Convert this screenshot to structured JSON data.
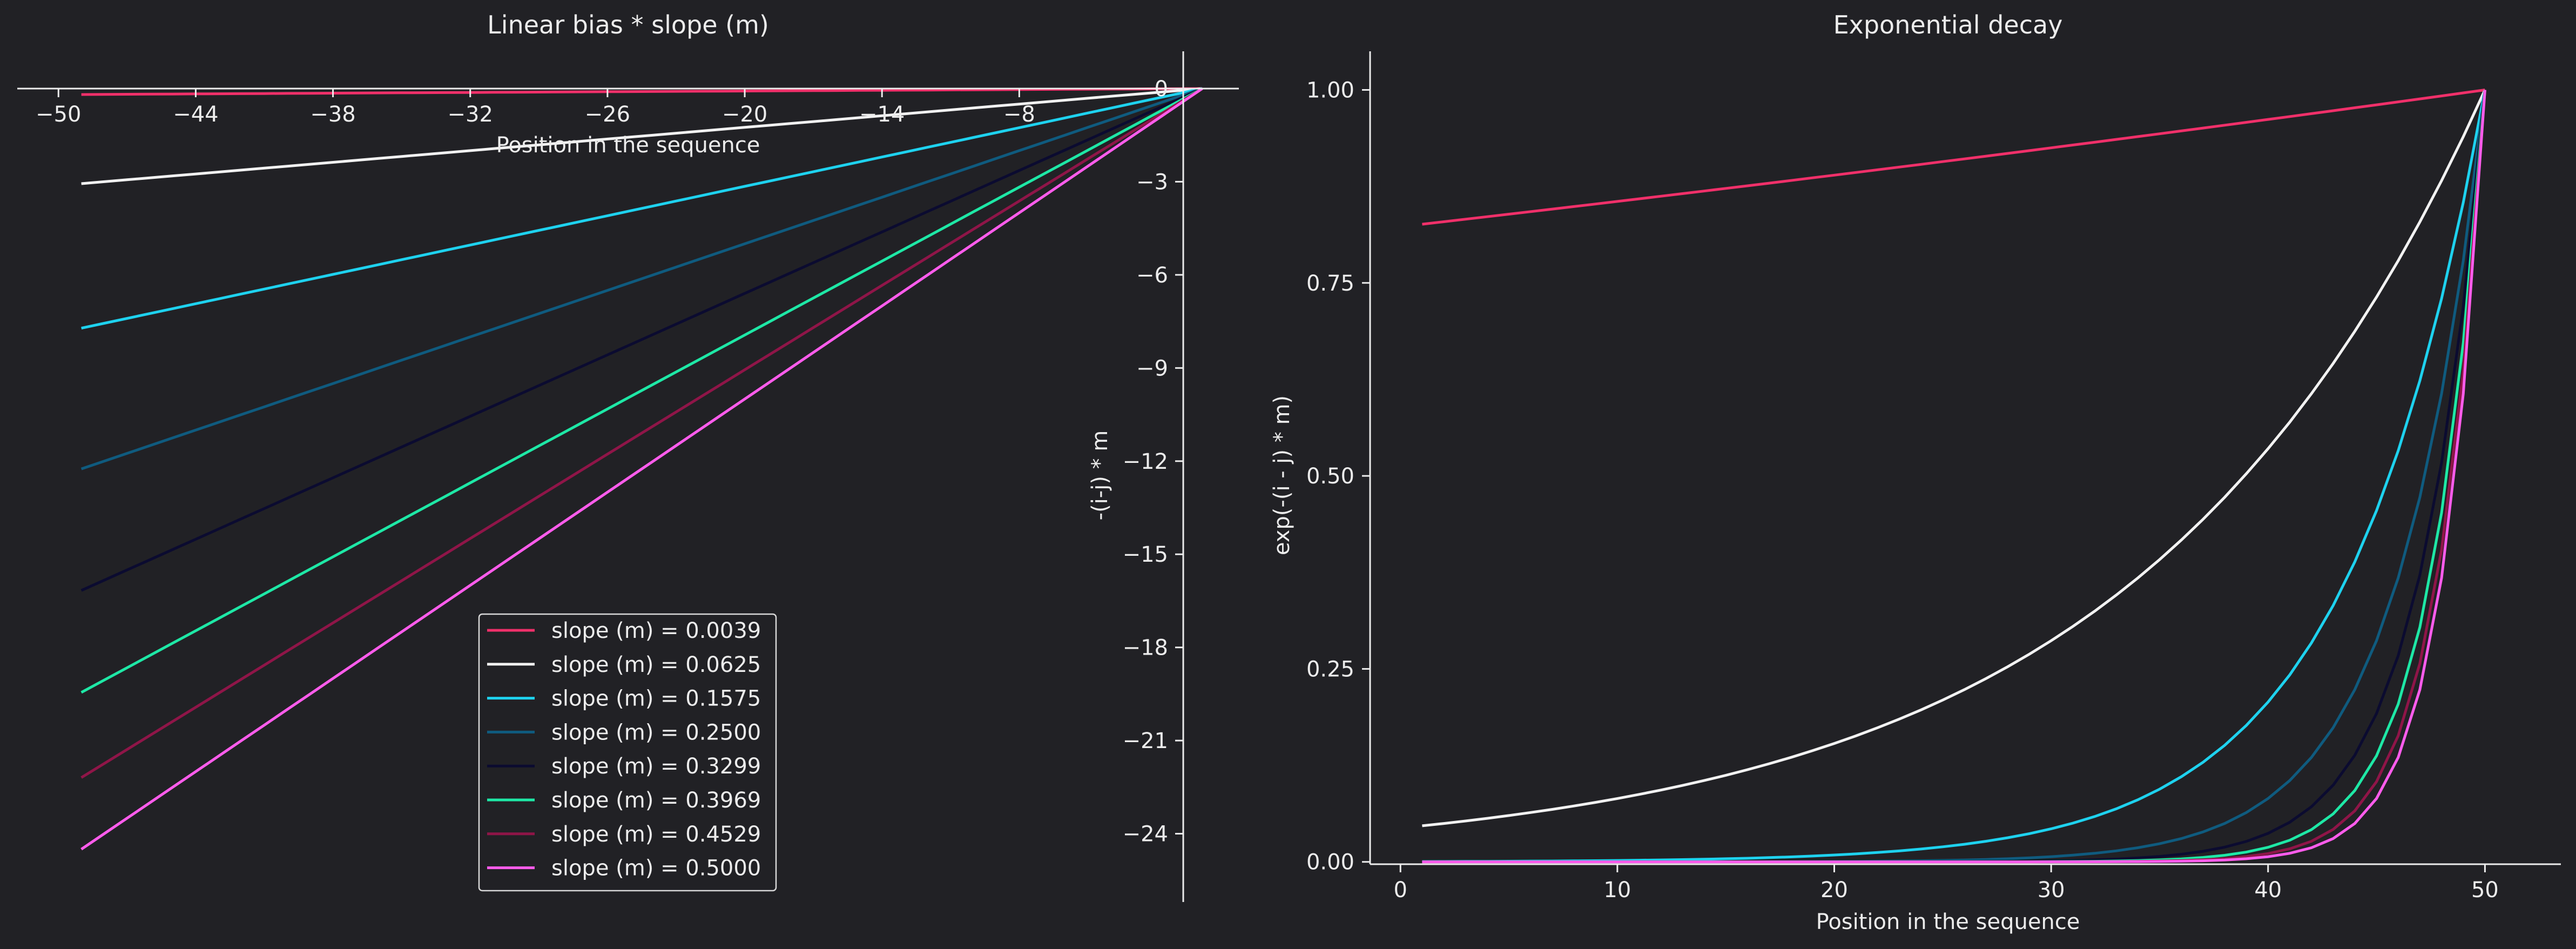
{
  "chart_data": [
    {
      "type": "line",
      "title": "Linear bias * slope (m)",
      "xlabel": "Position in the sequence",
      "ylabel": "-(i-j) * m",
      "xlim": [
        -51.8,
        1.6
      ],
      "ylim": [
        -26.2,
        1.2
      ],
      "xticks": [
        -50,
        -44,
        -38,
        -32,
        -26,
        -20,
        -14,
        -8
      ],
      "xtick_labels": [
        "−50",
        "−44",
        "−38",
        "−32",
        "−26",
        "−20",
        "−14",
        "−8"
      ],
      "yticks": [
        0,
        -3,
        -6,
        -9,
        -12,
        -15,
        -18,
        -21,
        -24
      ],
      "ytick_labels": [
        "0",
        "−3",
        "−6",
        "−9",
        "−12",
        "−15",
        "−18",
        "−21",
        "−24"
      ],
      "x_range": [
        -49,
        0
      ],
      "grid": false,
      "legend": "lower center",
      "series": [
        {
          "name": "slope (m) = 0.0039",
          "slope": 0.0039,
          "color": "#f0306a"
        },
        {
          "name": "slope (m) = 0.0625",
          "slope": 0.0625,
          "color": "#f2f2f2"
        },
        {
          "name": "slope (m) = 0.1575",
          "slope": 0.1575,
          "color": "#1ed2ef"
        },
        {
          "name": "slope (m) = 0.2500",
          "slope": 0.25,
          "color": "#0f5b7f"
        },
        {
          "name": "slope (m) = 0.3299",
          "slope": 0.3299,
          "color": "#0b0b30"
        },
        {
          "name": "slope (m) = 0.3969",
          "slope": 0.3969,
          "color": "#1ee8a6"
        },
        {
          "name": "slope (m) = 0.4529",
          "slope": 0.4529,
          "color": "#8f1548"
        },
        {
          "name": "slope (m) = 0.5000",
          "slope": 0.5,
          "color": "#ff5cec"
        }
      ]
    },
    {
      "type": "line",
      "title": "Exponential decay",
      "xlabel": "Position in the sequence",
      "ylabel": "exp(-(i - j) * m)",
      "xlim": [
        -1.4,
        53.5
      ],
      "ylim": [
        -0.003,
        1.05
      ],
      "xticks": [
        0,
        10,
        20,
        30,
        40,
        50
      ],
      "xtick_labels": [
        "0",
        "10",
        "20",
        "30",
        "40",
        "50"
      ],
      "yticks": [
        0,
        0.25,
        0.5,
        0.75,
        1.0
      ],
      "ytick_labels": [
        "0.00",
        "0.25",
        "0.50",
        "0.75",
        "1.00"
      ],
      "x_range": [
        1,
        50
      ],
      "grid": false,
      "series_colors": [
        "#f0306a",
        "#f2f2f2",
        "#1ed2ef",
        "#0f5b7f",
        "#0b0b30",
        "#1ee8a6",
        "#8f1548",
        "#ff5cec"
      ],
      "slopes": [
        0.0039,
        0.0625,
        0.1575,
        0.25,
        0.3299,
        0.3969,
        0.4529,
        0.5
      ]
    }
  ]
}
